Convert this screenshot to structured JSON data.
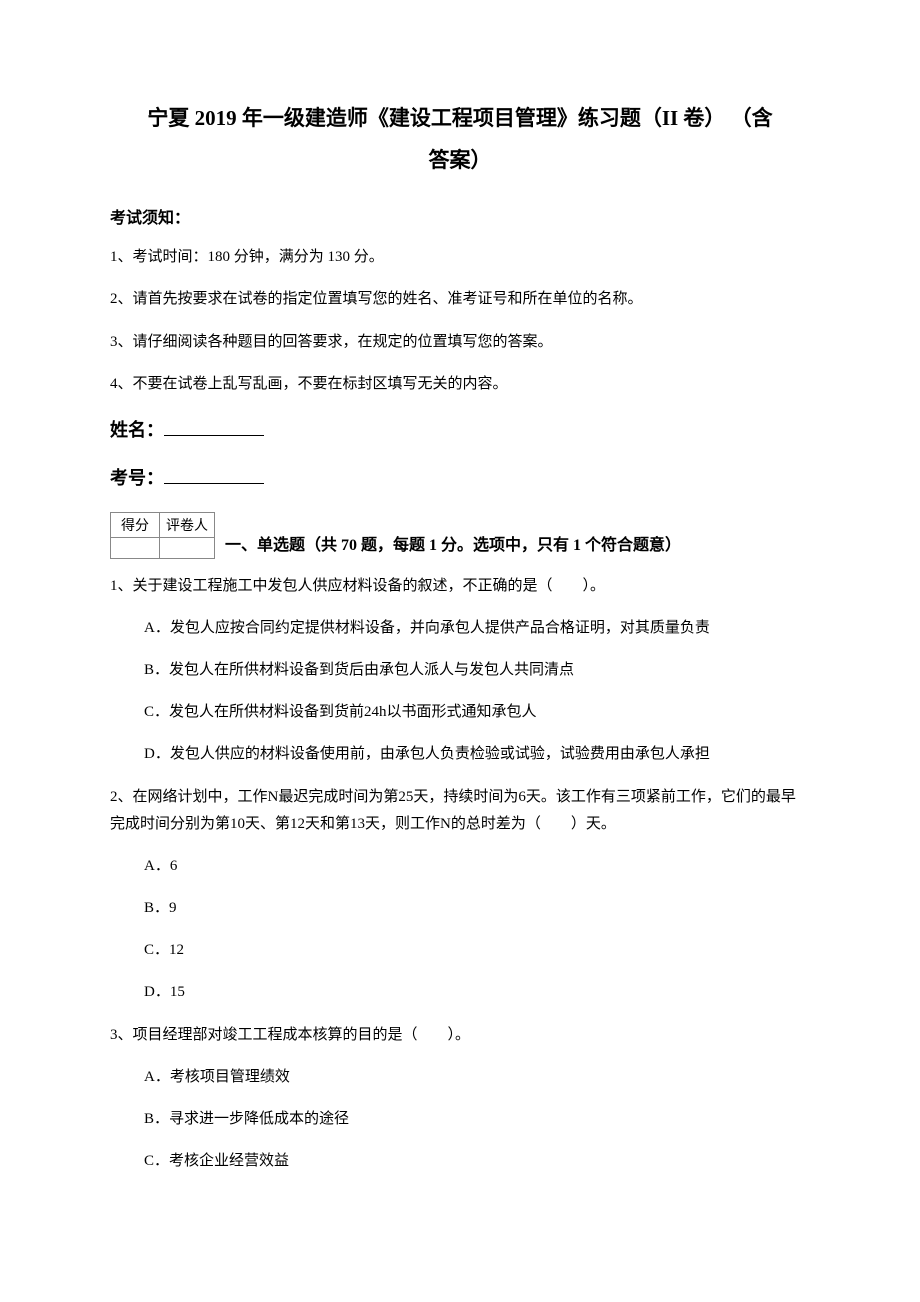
{
  "title_line1": "宁夏 2019 年一级建造师《建设工程项目管理》练习题（II 卷） （含",
  "title_line2": "答案）",
  "instructions": {
    "header": "考试须知：",
    "items": [
      "1、考试时间：180 分钟，满分为 130 分。",
      "2、请首先按要求在试卷的指定位置填写您的姓名、准考证号和所在单位的名称。",
      "3、请仔细阅读各种题目的回答要求，在规定的位置填写您的答案。",
      "4、不要在试卷上乱写乱画，不要在标封区填写无关的内容。"
    ]
  },
  "fields": {
    "name_label": "姓名：",
    "exam_no_label": "考号："
  },
  "score_table": {
    "col1": "得分",
    "col2": "评卷人"
  },
  "section_heading": "一、单选题（共 70 题，每题 1 分。选项中，只有 1 个符合题意）",
  "questions": [
    {
      "stem": "1、关于建设工程施工中发包人供应材料设备的叙述，不正确的是（　　）。",
      "options": [
        "A．发包人应按合同约定提供材料设备，并向承包人提供产品合格证明，对其质量负责",
        "B．发包人在所供材料设备到货后由承包人派人与发包人共同清点",
        "C．发包人在所供材料设备到货前24h以书面形式通知承包人",
        "D．发包人供应的材料设备使用前，由承包人负责检验或试验，试验费用由承包人承担"
      ]
    },
    {
      "stem": "2、在网络计划中，工作N最迟完成时间为第25天，持续时间为6天。该工作有三项紧前工作，它们的最早完成时间分别为第10天、第12天和第13天，则工作N的总时差为（　　）天。",
      "options": [
        "A．6",
        "B．9",
        "C．12",
        "D．15"
      ]
    },
    {
      "stem": "3、项目经理部对竣工工程成本核算的目的是（　　）。",
      "options": [
        "A．考核项目管理绩效",
        "B．寻求进一步降低成本的途径",
        "C．考核企业经营效益"
      ]
    }
  ]
}
